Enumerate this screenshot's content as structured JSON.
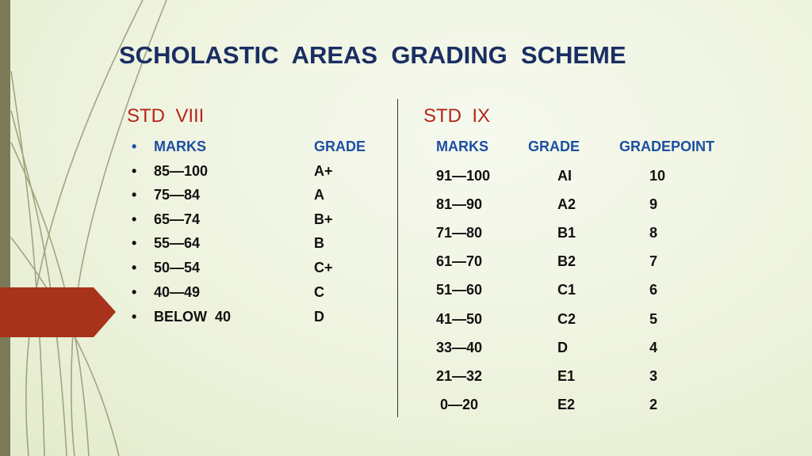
{
  "title": "SCHOLASTIC  AREAS  GRADING  SCHEME",
  "std8": {
    "heading": "STD  VIII",
    "bullet": "•",
    "header": {
      "marks": "MARKS",
      "grade": "GRADE"
    },
    "rows": [
      {
        "marks": "85—100",
        "grade": "A+"
      },
      {
        "marks": "75—84",
        "grade": "A"
      },
      {
        "marks": "65—74",
        "grade": "B+"
      },
      {
        "marks": "55—64",
        "grade": "B"
      },
      {
        "marks": "50—54",
        "grade": "C+"
      },
      {
        "marks": "40—49",
        "grade": "C"
      },
      {
        "marks": "BELOW  40",
        "grade": "D"
      }
    ]
  },
  "std9": {
    "heading": "STD  IX",
    "header": {
      "marks": "MARKS",
      "grade": "GRADE",
      "gradepoint": "GRADEPOINT"
    },
    "rows": [
      {
        "marks": "91—100",
        "grade": "AI",
        "gradepoint": "10"
      },
      {
        "marks": "81—90",
        "grade": "A2",
        "gradepoint": "9"
      },
      {
        "marks": "71—80",
        "grade": "B1",
        "gradepoint": "8"
      },
      {
        "marks": "61—70",
        "grade": "B2",
        "gradepoint": "7"
      },
      {
        "marks": "51—60",
        "grade": "C1",
        "gradepoint": "6"
      },
      {
        "marks": "41—50",
        "grade": "C2",
        "gradepoint": "5"
      },
      {
        "marks": "33—40",
        "grade": "D",
        "gradepoint": "4"
      },
      {
        "marks": "21—32",
        "grade": "E1",
        "gradepoint": "3"
      },
      {
        "marks": " 0—20",
        "grade": "E2",
        "gradepoint": "2"
      }
    ]
  },
  "colors": {
    "title": "#1a2e63",
    "section_heading": "#b3261b",
    "header_text": "#1c4fa3",
    "accent_tab": "#a8331b",
    "left_bar": "#7a7a56"
  }
}
